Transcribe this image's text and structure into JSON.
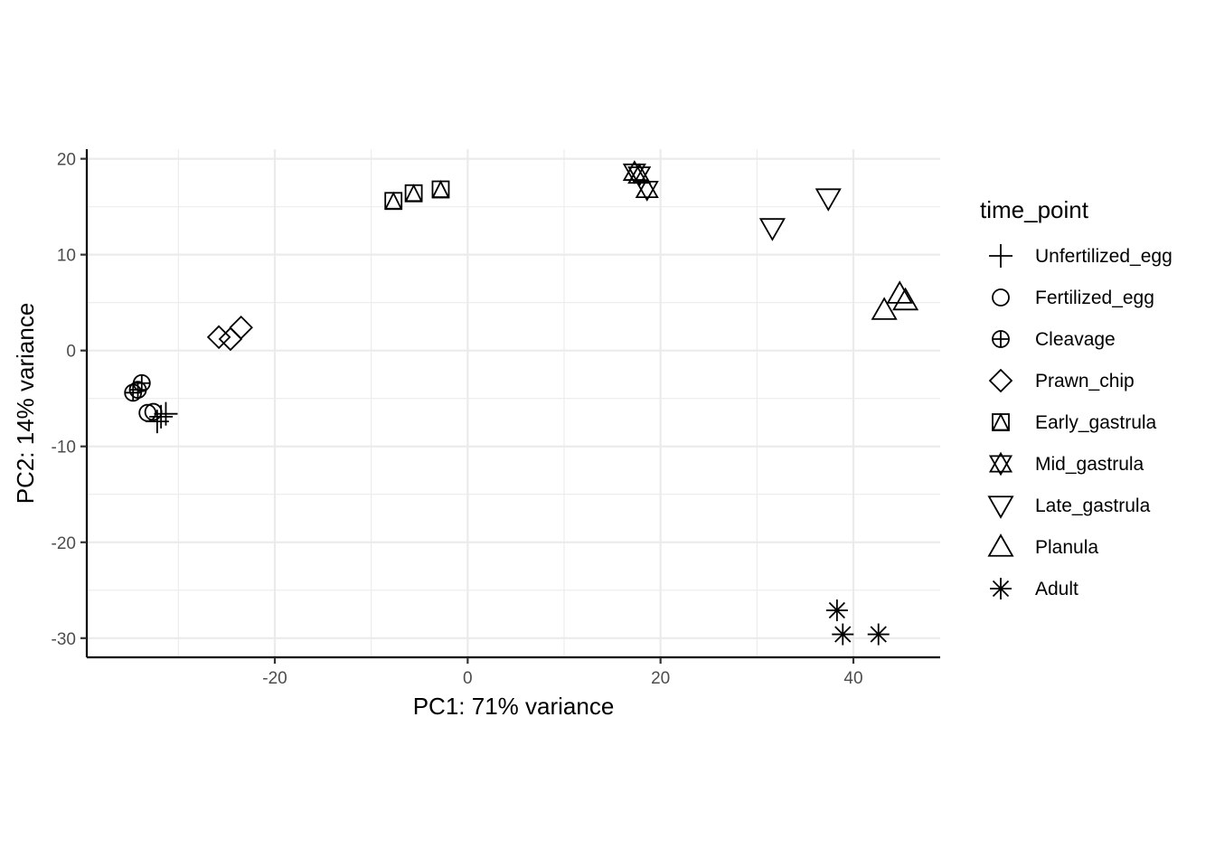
{
  "chart_data": {
    "type": "scatter",
    "title": "",
    "xlabel": "PC1: 71% variance",
    "ylabel": "PC2: 14% variance",
    "xlim": [
      -39.5,
      49
    ],
    "ylim": [
      -32,
      21
    ],
    "x_ticks": [
      -20,
      0,
      20,
      40
    ],
    "y_ticks": [
      20,
      10,
      0,
      -10,
      -20,
      -30
    ],
    "x_tick_labels": [
      "-20",
      "0",
      "20",
      "40"
    ],
    "y_tick_labels": [
      "20",
      "10",
      "0",
      "-10",
      "-20",
      "-30"
    ],
    "grid": true,
    "legend": {
      "title": "time_point",
      "position": "right"
    },
    "series": [
      {
        "name": "Unfertilized_egg",
        "shape": "plus",
        "points": [
          [
            -32.2,
            -7.4
          ],
          [
            -31.8,
            -6.9
          ],
          [
            -31.3,
            -6.6
          ]
        ]
      },
      {
        "name": "Fertilized_egg",
        "shape": "circle",
        "points": [
          [
            -33.2,
            -6.5
          ],
          [
            -32.6,
            -6.4
          ]
        ]
      },
      {
        "name": "Cleavage",
        "shape": "circle-plus",
        "points": [
          [
            -34.7,
            -4.4
          ],
          [
            -34.2,
            -4.1
          ],
          [
            -33.8,
            -3.4
          ]
        ]
      },
      {
        "name": "Prawn_chip",
        "shape": "diamond",
        "points": [
          [
            -25.8,
            1.4
          ],
          [
            -24.6,
            1.2
          ],
          [
            -23.5,
            2.4
          ]
        ]
      },
      {
        "name": "Early_gastrula",
        "shape": "square-triangle",
        "points": [
          [
            -7.7,
            15.6
          ],
          [
            -5.6,
            16.4
          ],
          [
            -2.8,
            16.8
          ]
        ]
      },
      {
        "name": "Mid_gastrula",
        "shape": "star-of-david",
        "points": [
          [
            17.3,
            18.6
          ],
          [
            17.8,
            18.3
          ],
          [
            18.6,
            16.8
          ]
        ]
      },
      {
        "name": "Late_gastrula",
        "shape": "triangle-down",
        "points": [
          [
            31.6,
            12.8
          ],
          [
            37.4,
            15.9
          ]
        ]
      },
      {
        "name": "Planula",
        "shape": "triangle-up",
        "points": [
          [
            43.2,
            4.2
          ],
          [
            44.8,
            5.9
          ],
          [
            45.4,
            5.2
          ]
        ]
      },
      {
        "name": "Adult",
        "shape": "asterisk",
        "points": [
          [
            38.3,
            -27.1
          ],
          [
            38.9,
            -29.6
          ],
          [
            42.6,
            -29.6
          ]
        ]
      }
    ]
  }
}
